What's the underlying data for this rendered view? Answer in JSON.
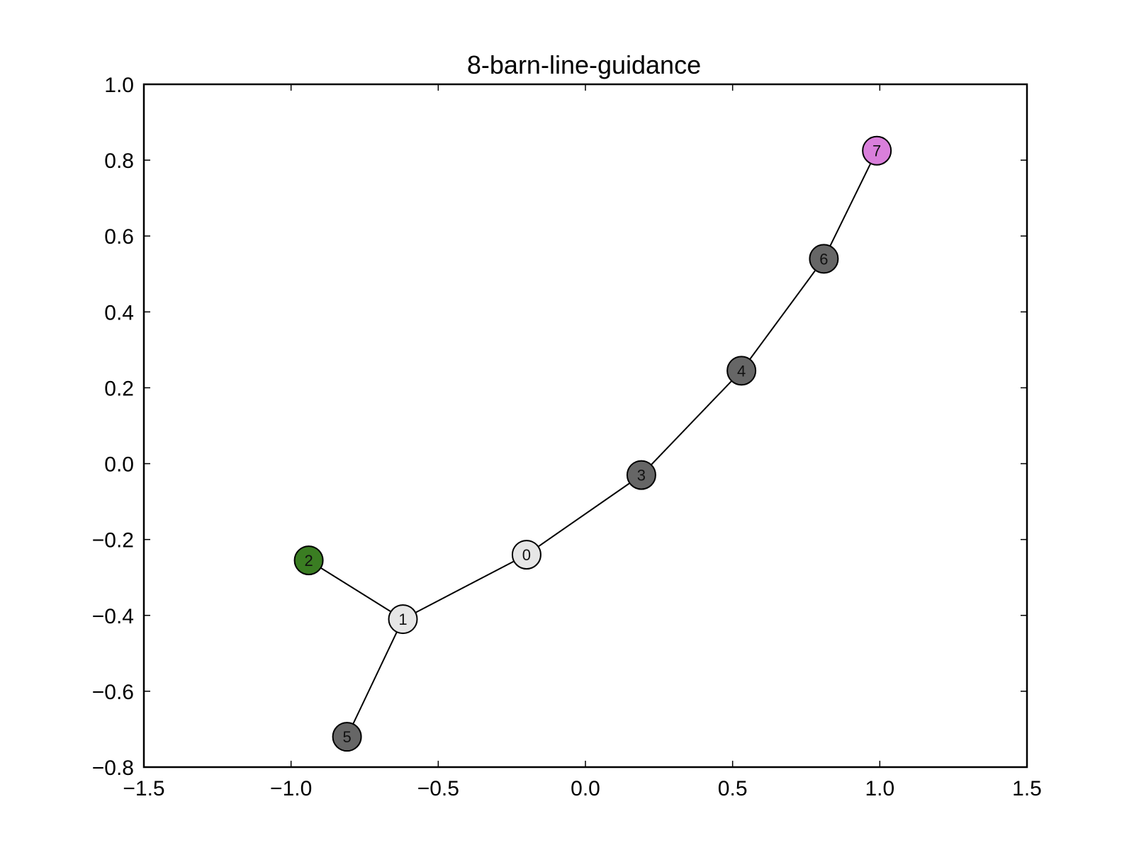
{
  "chart_data": {
    "type": "network",
    "title": "8-barn-line-guidance",
    "xlabel": "",
    "ylabel": "",
    "xlim": [
      -1.5,
      1.5
    ],
    "ylim": [
      -0.8,
      1.0
    ],
    "xticks": [
      -1.5,
      -1.0,
      -0.5,
      0.0,
      0.5,
      1.0,
      1.5
    ],
    "xtick_labels": [
      "−1.5",
      "−1.0",
      "−0.5",
      "0.0",
      "0.5",
      "1.0",
      "1.5"
    ],
    "yticks": [
      1.0,
      0.8,
      0.6,
      0.4,
      0.2,
      0.0,
      -0.2,
      -0.4,
      -0.6,
      -0.8
    ],
    "ytick_labels": [
      "1.0",
      "0.8",
      "0.6",
      "0.4",
      "0.2",
      "0.0",
      "−0.2",
      "−0.4",
      "−0.6",
      "−0.8"
    ],
    "grid": false,
    "nodes": [
      {
        "id": "0",
        "x": -0.2,
        "y": -0.24,
        "color": "#e6e6e6"
      },
      {
        "id": "1",
        "x": -0.62,
        "y": -0.41,
        "color": "#e6e6e6"
      },
      {
        "id": "2",
        "x": -0.94,
        "y": -0.255,
        "color": "#3a7d22"
      },
      {
        "id": "3",
        "x": 0.19,
        "y": -0.03,
        "color": "#666666"
      },
      {
        "id": "4",
        "x": 0.53,
        "y": 0.245,
        "color": "#666666"
      },
      {
        "id": "5",
        "x": -0.81,
        "y": -0.72,
        "color": "#666666"
      },
      {
        "id": "6",
        "x": 0.81,
        "y": 0.54,
        "color": "#666666"
      },
      {
        "id": "7",
        "x": 0.99,
        "y": 0.825,
        "color": "#d97fdb"
      }
    ],
    "edges": [
      [
        "2",
        "1"
      ],
      [
        "1",
        "5"
      ],
      [
        "1",
        "0"
      ],
      [
        "0",
        "3"
      ],
      [
        "3",
        "4"
      ],
      [
        "4",
        "6"
      ],
      [
        "6",
        "7"
      ]
    ]
  }
}
